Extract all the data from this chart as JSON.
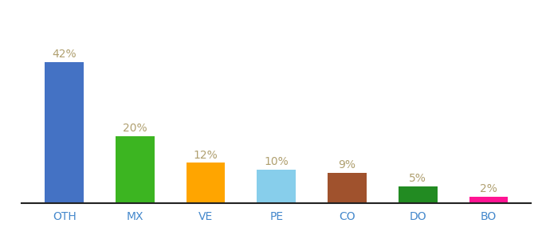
{
  "categories": [
    "OTH",
    "MX",
    "VE",
    "PE",
    "CO",
    "DO",
    "BO"
  ],
  "values": [
    42,
    20,
    12,
    10,
    9,
    5,
    2
  ],
  "labels": [
    "42%",
    "20%",
    "12%",
    "10%",
    "9%",
    "5%",
    "2%"
  ],
  "bar_colors": [
    "#4472C4",
    "#3CB521",
    "#FFA500",
    "#87CEEB",
    "#A0522D",
    "#228B22",
    "#FF1493"
  ],
  "background_color": "#ffffff",
  "label_fontsize": 10,
  "tick_fontsize": 10,
  "label_color": "#b0a070",
  "tick_color": "#4488cc",
  "ylim": [
    0,
    52
  ],
  "bar_width": 0.55
}
